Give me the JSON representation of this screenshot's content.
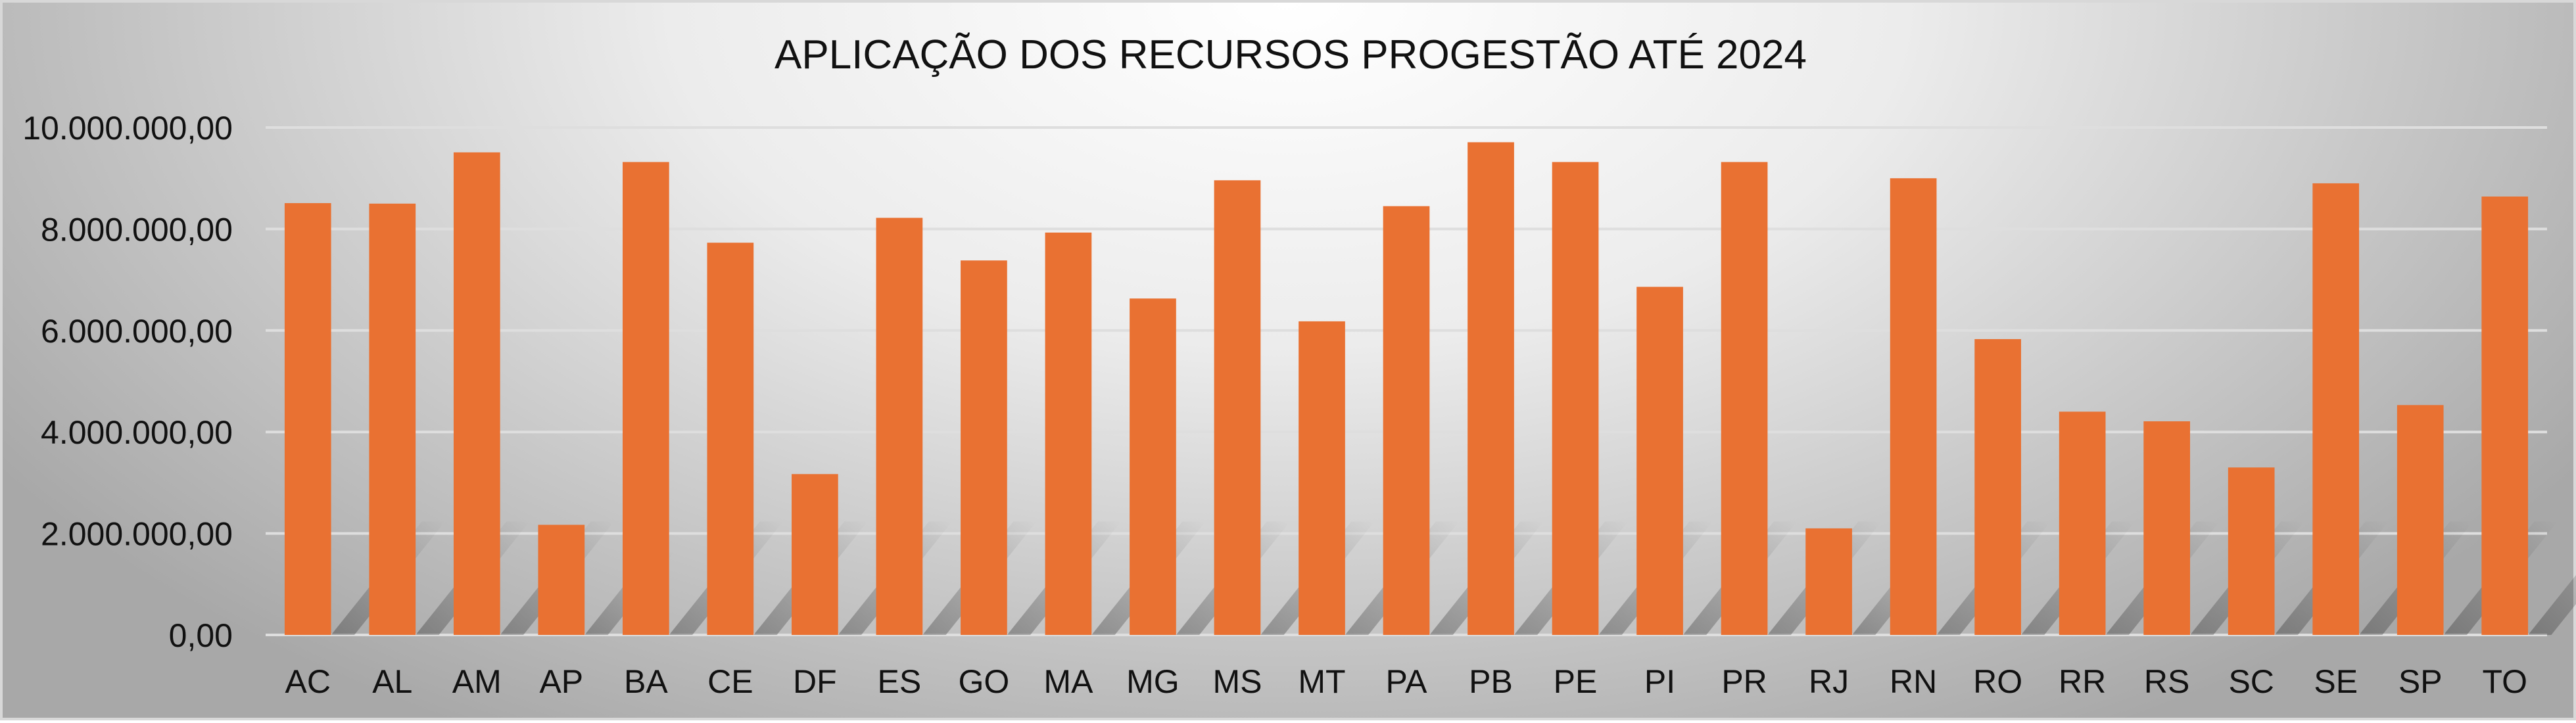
{
  "chart_data": {
    "type": "bar",
    "title": "APLICAÇÃO DOS RECURSOS PROGESTÃO ATÉ 2024",
    "xlabel": "",
    "ylabel": "",
    "ylim": [
      0,
      10000000
    ],
    "yticks": [
      0,
      2000000,
      4000000,
      6000000,
      8000000,
      10000000
    ],
    "ytick_labels": [
      "0,00",
      "2.000.000,00",
      "4.000.000,00",
      "6.000.000,00",
      "8.000.000,00",
      "10.000.000,00"
    ],
    "grid": true,
    "bar_color": "#E97132",
    "categories": [
      "AC",
      "AL",
      "AM",
      "AP",
      "BA",
      "CE",
      "DF",
      "ES",
      "GO",
      "MA",
      "MG",
      "MS",
      "MT",
      "PA",
      "PB",
      "PE",
      "PI",
      "PR",
      "RJ",
      "RN",
      "RO",
      "RR",
      "RS",
      "SC",
      "SE",
      "SP",
      "TO"
    ],
    "values": [
      8510000,
      8500000,
      9510000,
      2170000,
      9320000,
      7730000,
      3170000,
      8220000,
      7380000,
      7930000,
      6630000,
      8960000,
      6180000,
      8450000,
      9710000,
      9320000,
      6860000,
      9320000,
      2100000,
      9000000,
      5830000,
      4400000,
      4210000,
      3300000,
      8900000,
      4530000,
      8640000
    ]
  }
}
